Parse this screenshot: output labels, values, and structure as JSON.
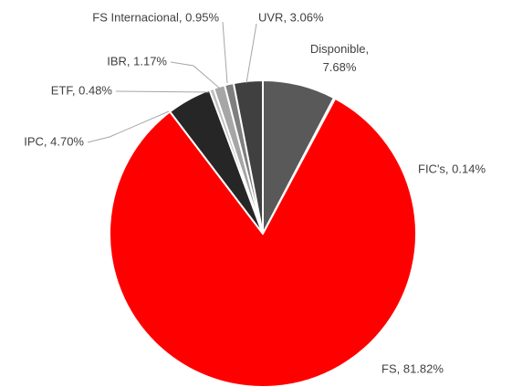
{
  "chart_data": {
    "type": "pie",
    "values": [
      7.68,
      0.14,
      81.82,
      4.7,
      0.48,
      1.17,
      0.95,
      3.06
    ],
    "value_labels": [
      "Disponible, 7.68%",
      "FIC's, 0.14%",
      "FS, 81.82%",
      "IPC, 4.70%",
      "ETF, 0.48%",
      "IBR, 1.17%",
      "FS Internacional, 0.95%",
      "UVR, 3.06%"
    ],
    "colors": [
      "#595959",
      "#ff0000",
      "#ff0000",
      "#262626",
      "#bfbfbf",
      "#a6a6a6",
      "#7f7f7f",
      "#404040"
    ]
  }
}
